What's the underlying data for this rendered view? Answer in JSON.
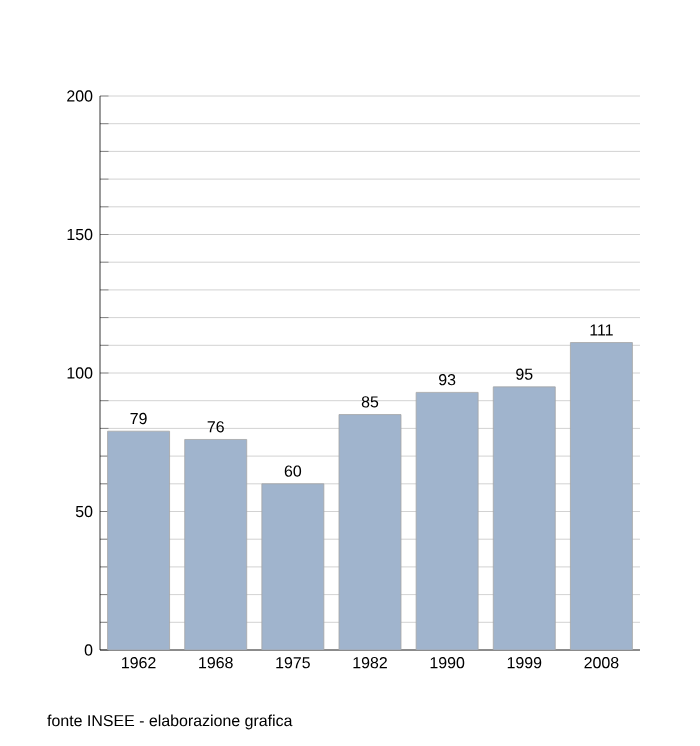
{
  "chart_data": {
    "type": "bar",
    "categories": [
      "1962",
      "1968",
      "1975",
      "1982",
      "1990",
      "1999",
      "2008"
    ],
    "values": [
      79,
      76,
      60,
      85,
      93,
      95,
      111
    ],
    "color": "#a0b4cd",
    "data_labels": true,
    "grid": "y",
    "ylim": [
      0,
      200
    ],
    "yticks": [
      0,
      {
        "value": 10,
        "label": null
      },
      {
        "value": 20,
        "label": null
      },
      {
        "value": 30,
        "label": null
      },
      {
        "value": 40,
        "label": null
      },
      50,
      {
        "value": 60,
        "label": null
      },
      {
        "value": 70,
        "label": null
      },
      {
        "value": 80,
        "label": null
      },
      {
        "value": 90,
        "label": null
      },
      100,
      {
        "value": 110,
        "label": null
      },
      {
        "value": 120,
        "label": null
      },
      {
        "value": 130,
        "label": null
      },
      {
        "value": 140,
        "label": null
      },
      150,
      {
        "value": 160,
        "label": null
      },
      {
        "value": 170,
        "label": null
      },
      {
        "value": 180,
        "label": null
      },
      {
        "value": 190,
        "label": null
      },
      200
    ],
    "annotations": [
      "fonte INSEE - elaborazione grafica"
    ]
  }
}
